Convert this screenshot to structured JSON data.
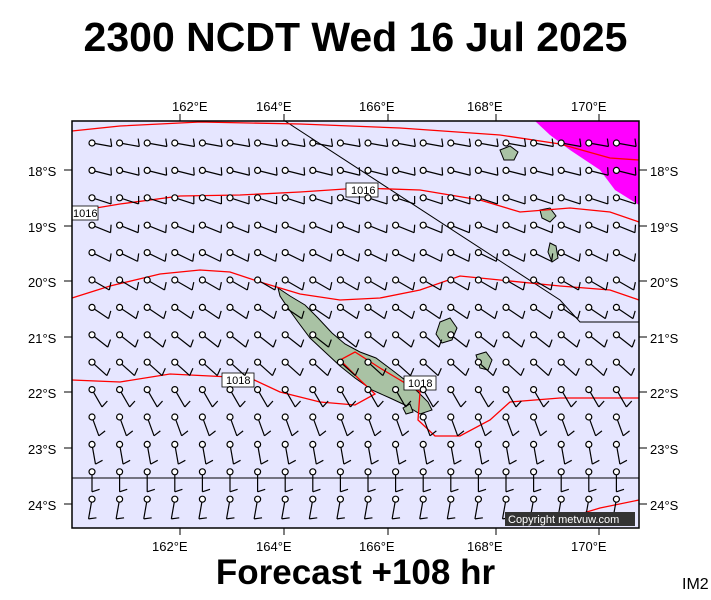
{
  "title": "2300 NCDT Wed 16 Jul 2025",
  "forecast_label": "Forecast +108 hr",
  "image_code": "IM2",
  "copyright": "Copyright metvuw.com",
  "map": {
    "lon_labels": [
      "162°E",
      "164°E",
      "166°E",
      "168°E",
      "170°E"
    ],
    "lat_labels": [
      "18°S",
      "19°S",
      "20°S",
      "21°S",
      "22°S",
      "23°S",
      "24°S"
    ],
    "pressure_labels": [
      "1016",
      "1016",
      "1018",
      "1018"
    ],
    "colors": {
      "ocean": "#e6e6ff",
      "land": "#9bb89b",
      "isobar": "#ff0000",
      "rain": "#ff00ff",
      "frame": "#000000"
    },
    "icons": [
      "wind-barb-icon",
      "station-circle-icon"
    ]
  }
}
